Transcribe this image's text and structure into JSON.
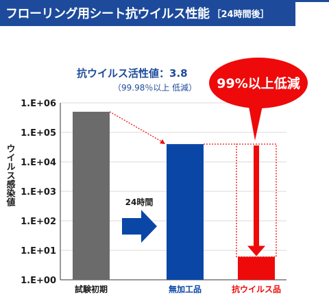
{
  "header": {
    "title": "フローリング用シート抗ウイルス性能",
    "subtitle": "［24時間後］"
  },
  "annotation": {
    "main": "抗ウイルス活性値：3.8",
    "sub": "（99.98％以上 低減）"
  },
  "callout": {
    "text": "99%以上低減"
  },
  "arrow_label": "24時間",
  "colors": {
    "title_bg": "#1d4a9b",
    "gray_bar": "#6b6b6b",
    "blue_bar": "#0a46a6",
    "red": "#ee0a0a",
    "text": "#1a1a1a"
  },
  "chart_data": {
    "type": "bar",
    "title": "",
    "ylabel": "ウイルス感染値",
    "yscale": "log",
    "ylim": [
      1,
      1000000
    ],
    "yticks": [
      "1.E+00",
      "1.E+01",
      "1.E+02",
      "1.E+03",
      "1.E+04",
      "1.E+05",
      "1.E+06"
    ],
    "categories": [
      "試験初期",
      "無加工品",
      "抗ウイルス品"
    ],
    "values": [
      500000,
      40000,
      6
    ],
    "grid": true
  }
}
